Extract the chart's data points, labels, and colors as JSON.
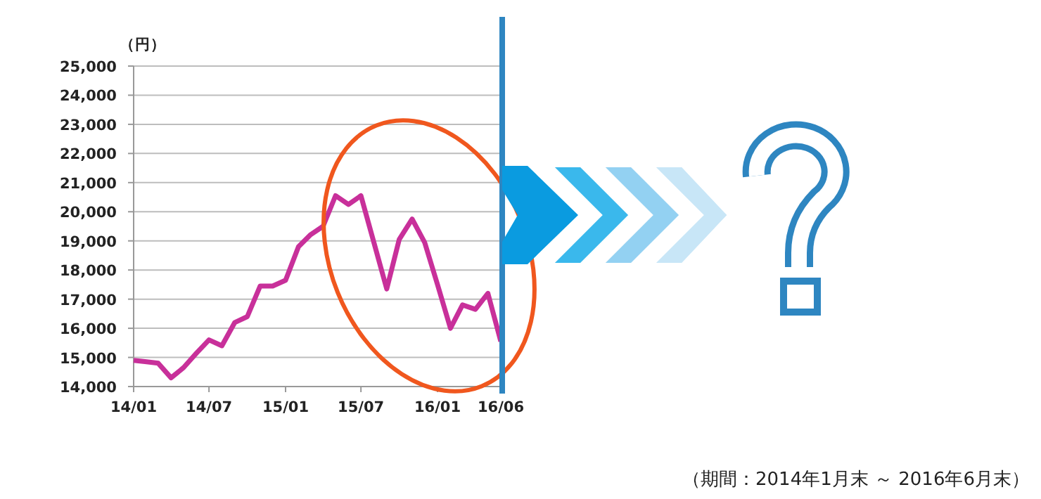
{
  "chart_data": {
    "type": "line",
    "ylabel": "（円）",
    "x": [
      "2014-01",
      "2014-02",
      "2014-03",
      "2014-04",
      "2014-05",
      "2014-06",
      "2014-07",
      "2014-08",
      "2014-09",
      "2014-10",
      "2014-11",
      "2014-12",
      "2015-01",
      "2015-02",
      "2015-03",
      "2015-04",
      "2015-05",
      "2015-06",
      "2015-07",
      "2015-08",
      "2015-09",
      "2015-10",
      "2015-11",
      "2015-12",
      "2016-01",
      "2016-02",
      "2016-03",
      "2016-04",
      "2016-05",
      "2016-06"
    ],
    "series": [
      {
        "color": "#c8309a",
        "values": [
          14900,
          14850,
          14800,
          14300,
          14650,
          15150,
          15600,
          15400,
          16200,
          16400,
          17450,
          17450,
          17650,
          18800,
          19200,
          19500,
          20550,
          20250,
          20550,
          18950,
          17350,
          19050,
          19750,
          18950,
          17500,
          16000,
          16800,
          16650,
          17200,
          15550
        ]
      }
    ],
    "xlim": [
      "2014-01",
      "2016-06"
    ],
    "xticks": [
      {
        "value": "2014-01",
        "label": "14/01"
      },
      {
        "value": "2014-07",
        "label": "14/07"
      },
      {
        "value": "2015-01",
        "label": "15/01"
      },
      {
        "value": "2015-07",
        "label": "15/07"
      },
      {
        "value": "2016-01",
        "label": "16/01"
      },
      {
        "value": "2016-06",
        "label": "16/06"
      }
    ],
    "ylim": [
      14000,
      25000
    ],
    "yticks": [
      {
        "value": 14000,
        "label": "14,000"
      },
      {
        "value": 15000,
        "label": "15,000"
      },
      {
        "value": 16000,
        "label": "16,000"
      },
      {
        "value": 17000,
        "label": "17,000"
      },
      {
        "value": 18000,
        "label": "18,000"
      },
      {
        "value": 19000,
        "label": "19,000"
      },
      {
        "value": 20000,
        "label": "20,000"
      },
      {
        "value": 21000,
        "label": "21,000"
      },
      {
        "value": 22000,
        "label": "22,000"
      },
      {
        "value": 23000,
        "label": "23,000"
      },
      {
        "value": 24000,
        "label": "24,000"
      },
      {
        "value": 25000,
        "label": "25,000"
      }
    ],
    "grid": "y",
    "marker": "none",
    "line_style": "solid",
    "annotations": [
      "（期間：2014年1月末 ～ 2016年6月末）"
    ]
  }
}
